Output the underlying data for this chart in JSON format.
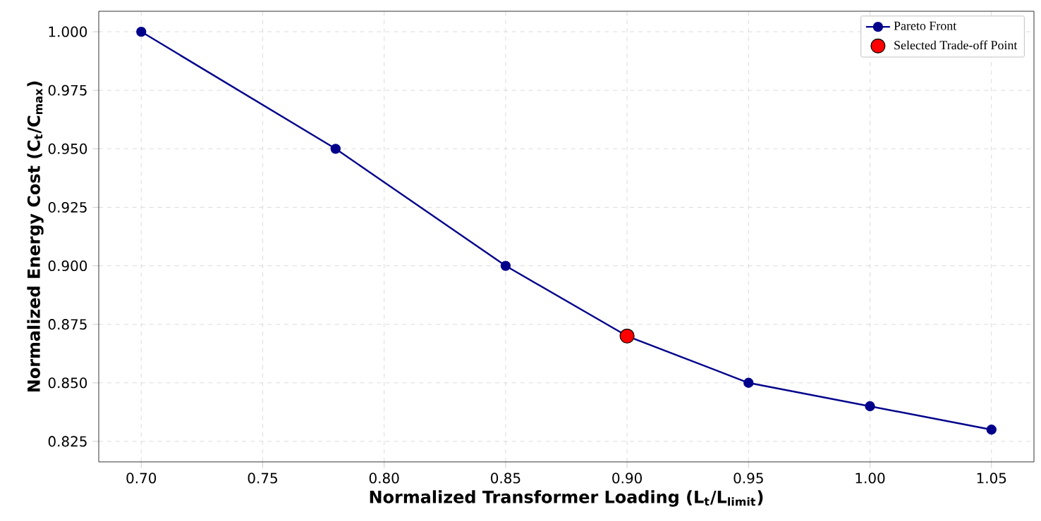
{
  "chart_data": {
    "type": "line",
    "xlabel": "Normalized Transformer Loading (L$_{t}$/L$_{limit}$)",
    "ylabel": "Normalized Energy Cost (C$_{t}$/C$_{max}$)",
    "xlim": [
      0.6825,
      1.0675
    ],
    "ylim": [
      0.81625,
      1.00875
    ],
    "xticks": [
      {
        "value": 0.7,
        "label": "0.70"
      },
      {
        "value": 0.75,
        "label": "0.75"
      },
      {
        "value": 0.8,
        "label": "0.80"
      },
      {
        "value": 0.85,
        "label": "0.85"
      },
      {
        "value": 0.9,
        "label": "0.90"
      },
      {
        "value": 0.95,
        "label": "0.95"
      },
      {
        "value": 1.0,
        "label": "1.00"
      },
      {
        "value": 1.05,
        "label": "1.05"
      }
    ],
    "yticks": [
      {
        "value": 0.825,
        "label": "0.825"
      },
      {
        "value": 0.85,
        "label": "0.850"
      },
      {
        "value": 0.875,
        "label": "0.875"
      },
      {
        "value": 0.9,
        "label": "0.900"
      },
      {
        "value": 0.925,
        "label": "0.925"
      },
      {
        "value": 0.95,
        "label": "0.950"
      },
      {
        "value": 0.975,
        "label": "0.975"
      },
      {
        "value": 1.0,
        "label": "1.000"
      }
    ],
    "grid": true,
    "legend": "top right",
    "marker": "circle",
    "series": [
      {
        "name": "Pareto Front",
        "color": "#00008b",
        "x": [
          0.7,
          0.78,
          0.85,
          0.9,
          0.95,
          1.0,
          1.05
        ],
        "values": [
          1.0,
          0.95,
          0.9,
          0.87,
          0.85,
          0.84,
          0.83
        ]
      },
      {
        "name": "Selected Trade-off Point",
        "type": "scatter",
        "color": "#ff0000",
        "x": [
          0.9
        ],
        "values": [
          0.87
        ]
      }
    ]
  }
}
